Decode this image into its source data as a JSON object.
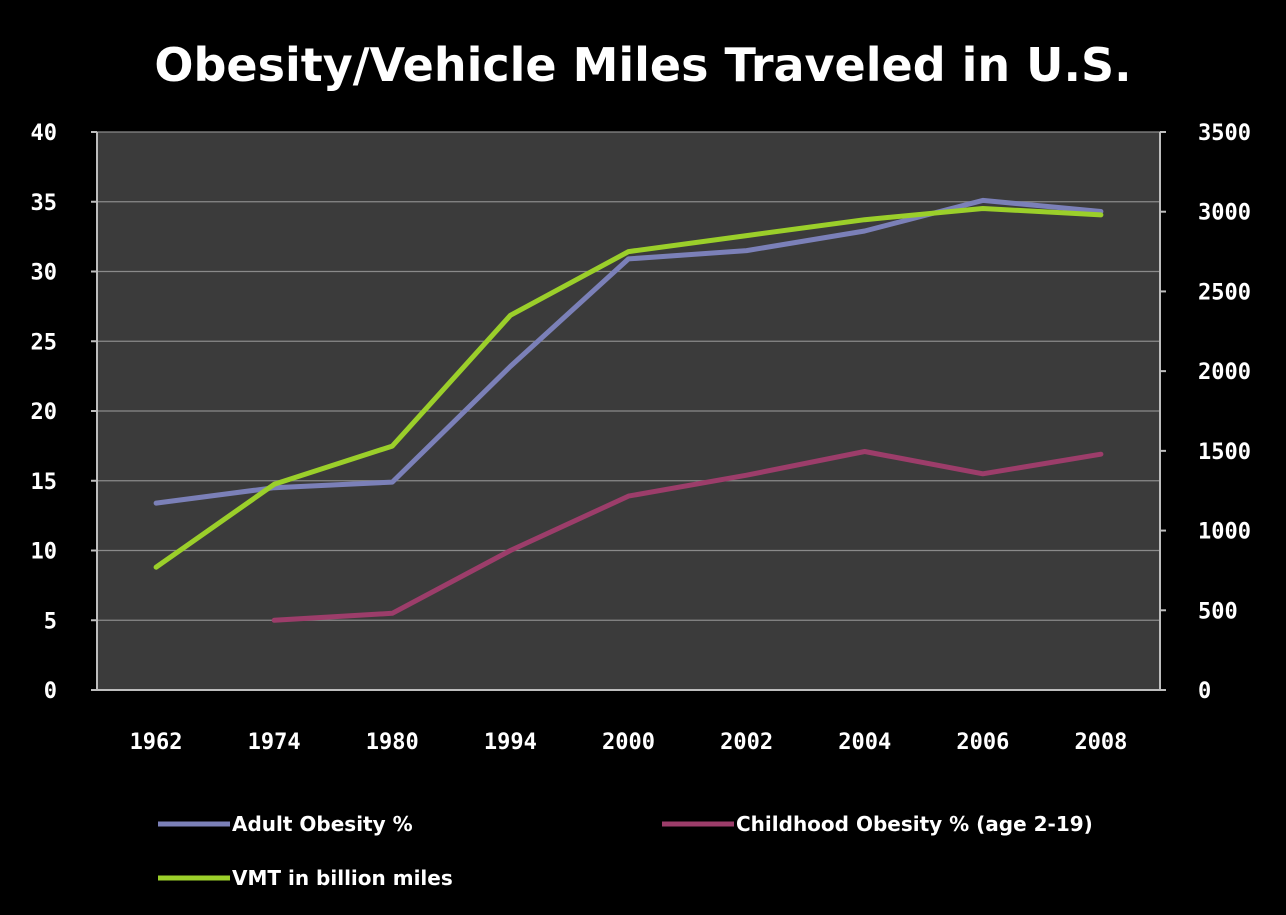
{
  "chart_data": {
    "type": "line",
    "title": "Obesity/Vehicle Miles Traveled in U.S.",
    "categories": [
      "1962",
      "1974",
      "1980",
      "1994",
      "2000",
      "2002",
      "2004",
      "2006",
      "2008"
    ],
    "y_left": {
      "ylim": [
        0,
        40
      ],
      "ticks": [
        "0",
        "5",
        "10",
        "15",
        "20",
        "25",
        "30",
        "35",
        "40"
      ]
    },
    "y_right": {
      "ylim": [
        0,
        3500
      ],
      "ticks": [
        "0",
        "500",
        "1000",
        "1500",
        "2000",
        "2500",
        "3000",
        "3500"
      ]
    },
    "grid": true,
    "legend_position": "bottom",
    "series": [
      {
        "name": "Adult Obesity %",
        "axis": "left",
        "color": "#7b80b8",
        "values": [
          13.4,
          14.5,
          14.9,
          23.2,
          30.9,
          31.5,
          32.9,
          35.1,
          34.3
        ]
      },
      {
        "name": "Childhood Obesity % (age 2-19)",
        "axis": "left",
        "color": "#9c3d6a",
        "values": [
          null,
          5.0,
          5.5,
          10.0,
          13.9,
          15.4,
          17.1,
          15.5,
          16.9
        ]
      },
      {
        "name": "VMT in billion miles",
        "axis": "right",
        "color": "#9bcf2a",
        "values": [
          770,
          1290,
          1530,
          2350,
          2750,
          2850,
          2950,
          3020,
          2980
        ]
      }
    ]
  }
}
